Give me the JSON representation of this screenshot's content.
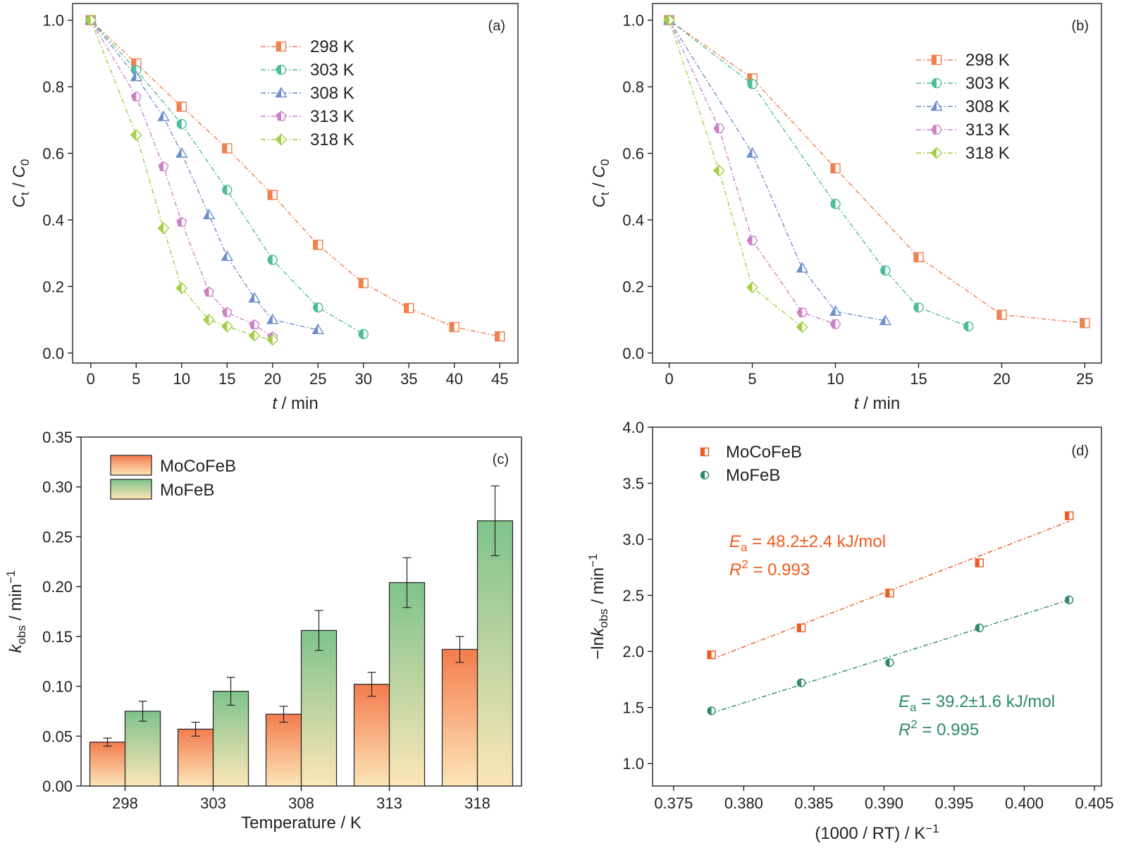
{
  "colors": {
    "orange": "#f08050",
    "green": "#4dbd96",
    "blue": "#6f8fcc",
    "pink": "#cc80c8",
    "lime": "#a3cf44",
    "mocofeb": "#f05a1e",
    "mofeb": "#2e8a68",
    "bar_orange_top": "#f47c4e",
    "bar_orange_bottom": "#fce6b8",
    "bar_green_top": "#7fc38b",
    "bar_green_bottom": "#fce6b8"
  },
  "chart_data": [
    {
      "panel": "(a)",
      "type": "line",
      "xlabel": "t / min",
      "ylabel": "Ct / C0",
      "xlim": [
        -2,
        47
      ],
      "ylim": [
        -0.03,
        1.05
      ],
      "xticks": [
        0,
        5,
        10,
        15,
        20,
        25,
        30,
        35,
        40,
        45
      ],
      "yticks": [
        "0.0",
        "0.2",
        "0.4",
        "0.6",
        "0.8",
        "1.0"
      ],
      "legend_position": "top-right",
      "series": [
        {
          "name": "298 K",
          "marker": "square",
          "color_key": "orange",
          "x": [
            0,
            5,
            10,
            15,
            20,
            25,
            30,
            35,
            40,
            45
          ],
          "y": [
            1.0,
            0.87,
            0.74,
            0.615,
            0.475,
            0.325,
            0.21,
            0.135,
            0.078,
            0.05
          ]
        },
        {
          "name": "303 K",
          "marker": "circle",
          "color_key": "green",
          "x": [
            0,
            5,
            10,
            15,
            20,
            25,
            30
          ],
          "y": [
            1.0,
            0.85,
            0.688,
            0.49,
            0.28,
            0.137,
            0.057
          ]
        },
        {
          "name": "308 K",
          "marker": "triangle",
          "color_key": "blue",
          "x": [
            0,
            5,
            8,
            10,
            13,
            15,
            18,
            20,
            25
          ],
          "y": [
            1.0,
            0.83,
            0.71,
            0.6,
            0.415,
            0.29,
            0.165,
            0.1,
            0.07
          ]
        },
        {
          "name": "313 K",
          "marker": "pentagon",
          "color_key": "pink",
          "x": [
            0,
            5,
            8,
            10,
            13,
            15,
            18,
            20
          ],
          "y": [
            1.0,
            0.77,
            0.56,
            0.393,
            0.183,
            0.122,
            0.085,
            0.048
          ]
        },
        {
          "name": "318 K",
          "marker": "diamond",
          "color_key": "lime",
          "x": [
            0,
            5,
            8,
            10,
            13,
            15,
            18,
            20
          ],
          "y": [
            1.0,
            0.655,
            0.375,
            0.195,
            0.1,
            0.08,
            0.052,
            0.04
          ]
        }
      ]
    },
    {
      "panel": "(b)",
      "type": "line",
      "xlabel": "t / min",
      "ylabel": "Ct / C0",
      "xlim": [
        -1,
        26
      ],
      "ylim": [
        -0.03,
        1.05
      ],
      "xticks": [
        0,
        5,
        10,
        15,
        20,
        25
      ],
      "yticks": [
        "0.0",
        "0.2",
        "0.4",
        "0.6",
        "0.8",
        "1.0"
      ],
      "legend_position": "top-right",
      "series": [
        {
          "name": "298 K",
          "marker": "square",
          "color_key": "orange",
          "x": [
            0,
            5,
            10,
            15,
            20,
            25
          ],
          "y": [
            1.0,
            0.825,
            0.555,
            0.288,
            0.115,
            0.09
          ]
        },
        {
          "name": "303 K",
          "marker": "circle",
          "color_key": "green",
          "x": [
            0,
            5,
            10,
            13,
            15,
            18
          ],
          "y": [
            1.0,
            0.808,
            0.448,
            0.248,
            0.137,
            0.08
          ]
        },
        {
          "name": "308 K",
          "marker": "triangle",
          "color_key": "blue",
          "x": [
            0,
            5,
            8,
            10,
            13
          ],
          "y": [
            1.0,
            0.6,
            0.255,
            0.125,
            0.097
          ]
        },
        {
          "name": "313 K",
          "marker": "hexagon",
          "color_key": "pink",
          "x": [
            0,
            3,
            5,
            8,
            10
          ],
          "y": [
            1.0,
            0.675,
            0.338,
            0.122,
            0.087
          ]
        },
        {
          "name": "318 K",
          "marker": "diamond",
          "color_key": "lime",
          "x": [
            0,
            3,
            5,
            8
          ],
          "y": [
            1.0,
            0.548,
            0.197,
            0.078
          ]
        }
      ]
    },
    {
      "panel": "(c)",
      "type": "bar",
      "xlabel": "Temperature / K",
      "ylabel": "kobs / min−1",
      "categories": [
        "298",
        "303",
        "308",
        "313",
        "318"
      ],
      "ylim": [
        0,
        0.35
      ],
      "yticks": [
        "0.00",
        "0.05",
        "0.10",
        "0.15",
        "0.20",
        "0.25",
        "0.30",
        "0.35"
      ],
      "legend_position": "top-left",
      "series": [
        {
          "name": "MoCoFeB",
          "values": [
            0.044,
            0.057,
            0.072,
            0.102,
            0.137
          ],
          "errors": [
            0.004,
            0.007,
            0.008,
            0.012,
            0.013
          ]
        },
        {
          "name": "MoFeB",
          "values": [
            0.075,
            0.095,
            0.156,
            0.204,
            0.266
          ],
          "errors": [
            0.01,
            0.014,
            0.02,
            0.025,
            0.035
          ]
        }
      ]
    },
    {
      "panel": "(d)",
      "type": "scatter",
      "xlabel": "(1000 / RT) / K−1",
      "ylabel": "−lnkobs / min−1",
      "xlim": [
        0.3735,
        0.4055
      ],
      "ylim": [
        0.8,
        4.0
      ],
      "xticks": [
        "0.375",
        "0.380",
        "0.385",
        "0.390",
        "0.395",
        "0.400",
        "0.405"
      ],
      "yticks": [
        "1.0",
        "1.5",
        "2.0",
        "2.5",
        "3.0",
        "3.5",
        "4.0"
      ],
      "legend_position": "top-left",
      "series": [
        {
          "name": "MoCoFeB",
          "color_key": "mocofeb",
          "x": [
            0.3777,
            0.3841,
            0.3904,
            0.3968,
            0.4032
          ],
          "y": [
            1.97,
            2.21,
            2.52,
            2.79,
            3.21
          ],
          "fit": {
            "x": [
              0.3777,
              0.4032
            ],
            "y": [
              1.93,
              3.16
            ]
          },
          "annotation": {
            "line1_lead": "E",
            "line1_sub": "a",
            "line1_rest": " = 48.2±2.4 kJ/mol",
            "line2_lead": "R",
            "line2_sup": "2",
            "line2_rest": " = 0.993"
          }
        },
        {
          "name": "MoFeB",
          "color_key": "mofeb",
          "x": [
            0.3777,
            0.3841,
            0.3904,
            0.3968,
            0.4032
          ],
          "y": [
            1.47,
            1.72,
            1.9,
            2.21,
            2.46
          ],
          "fit": {
            "x": [
              0.3777,
              0.4032
            ],
            "y": [
              1.45,
              2.46
            ]
          },
          "annotation": {
            "line1_lead": "E",
            "line1_sub": "a",
            "line1_rest": " = 39.2±1.6 kJ/mol",
            "line2_lead": "R",
            "line2_sup": "2",
            "line2_rest": " = 0.995"
          }
        }
      ]
    }
  ]
}
